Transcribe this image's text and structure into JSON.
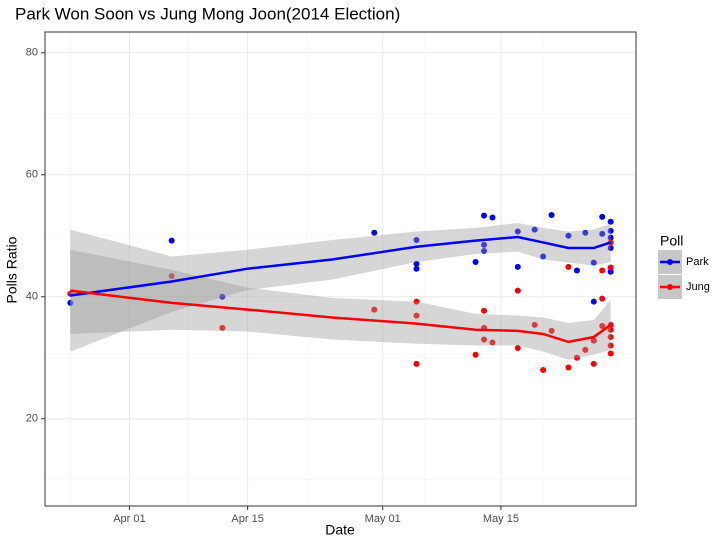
{
  "chart_data": {
    "type": "scatter-smooth",
    "title": "Park Won Soon vs Jung Mong Joon(2014 Election)",
    "x_label": "Date",
    "y_label": "Polls Ratio",
    "legend_title": "Poll",
    "legend_position": "right",
    "grid": true,
    "xlim": [
      "Mar 22",
      "May 31"
    ],
    "xticks": [
      "Apr 01",
      "Apr 15",
      "May 01",
      "May 15"
    ],
    "ylim": [
      5.7,
      83.4
    ],
    "yticks": [
      20,
      40,
      60,
      80
    ],
    "series": [
      {
        "name": "Park",
        "color": "#0000ff",
        "x": [
          "Mar 25",
          "Apr 06",
          "Apr 12",
          "Apr 30",
          "May 05",
          "May 05",
          "May 05",
          "May 12",
          "May 13",
          "May 13",
          "May 13",
          "May 14",
          "May 17",
          "May 17",
          "May 19",
          "May 20",
          "May 21",
          "May 23",
          "May 24",
          "May 25",
          "May 26",
          "May 26",
          "May 27",
          "May 27",
          "May 28",
          "May 28",
          "May 28",
          "May 28",
          "May 28"
        ],
        "values": [
          39.0,
          49.2,
          40.0,
          50.5,
          49.3,
          45.4,
          44.6,
          45.7,
          53.3,
          48.5,
          47.5,
          53.0,
          50.7,
          44.9,
          51.0,
          46.6,
          53.4,
          50.0,
          44.3,
          50.5,
          45.6,
          39.2,
          53.1,
          50.3,
          52.3,
          50.8,
          48.0,
          44.1,
          49.7
        ],
        "fit": {
          "x": [
            "Mar 25",
            "Apr 06",
            "Apr 15",
            "Apr 25",
            "May 05",
            "May 12",
            "May 17",
            "May 20",
            "May 23",
            "May 26",
            "May 28"
          ],
          "values": [
            40.2,
            42.5,
            44.6,
            46.1,
            48.2,
            49.2,
            49.8,
            48.9,
            48.0,
            48.0,
            48.9
          ],
          "upper": [
            51.0,
            46.6,
            47.7,
            49.3,
            50.7,
            51.3,
            52.1,
            51.3,
            50.7,
            51.0,
            52.0
          ],
          "lower": [
            31.0,
            37.5,
            41.1,
            42.8,
            45.7,
            47.0,
            47.4,
            46.1,
            45.6,
            45.1,
            45.7
          ]
        }
      },
      {
        "name": "Jung",
        "color": "#ff0000",
        "x": [
          "Mar 25",
          "Apr 06",
          "Apr 12",
          "Apr 30",
          "May 05",
          "May 05",
          "May 05",
          "May 12",
          "May 13",
          "May 13",
          "May 13",
          "May 14",
          "May 17",
          "May 17",
          "May 19",
          "May 20",
          "May 21",
          "May 23",
          "May 23",
          "May 24",
          "May 25",
          "May 26",
          "May 26",
          "May 27",
          "May 27",
          "May 27",
          "May 28",
          "May 28",
          "May 28",
          "May 28",
          "May 28",
          "May 28",
          "May 28"
        ],
        "values": [
          40.5,
          43.4,
          34.9,
          37.9,
          39.2,
          36.9,
          29.0,
          30.5,
          37.7,
          34.9,
          33.0,
          32.5,
          41.0,
          31.6,
          35.4,
          28.0,
          34.4,
          44.9,
          28.4,
          30.0,
          31.3,
          32.8,
          29.0,
          44.3,
          35.2,
          39.7,
          44.8,
          35.4,
          34.6,
          33.4,
          32.0,
          30.7,
          48.9
        ],
        "fit": {
          "x": [
            "Mar 25",
            "Apr 06",
            "Apr 15",
            "Apr 25",
            "May 05",
            "May 12",
            "May 17",
            "May 20",
            "May 23",
            "May 26",
            "May 28"
          ],
          "values": [
            41.0,
            39.0,
            37.9,
            36.6,
            35.6,
            34.6,
            34.4,
            33.9,
            32.6,
            33.4,
            35.4
          ],
          "upper": [
            47.7,
            44.4,
            41.5,
            39.8,
            39.2,
            37.2,
            36.9,
            36.6,
            35.7,
            36.2,
            39.5
          ],
          "lower": [
            33.9,
            34.6,
            34.3,
            33.0,
            32.3,
            32.0,
            32.0,
            31.0,
            29.7,
            30.5,
            31.3
          ]
        }
      }
    ]
  }
}
